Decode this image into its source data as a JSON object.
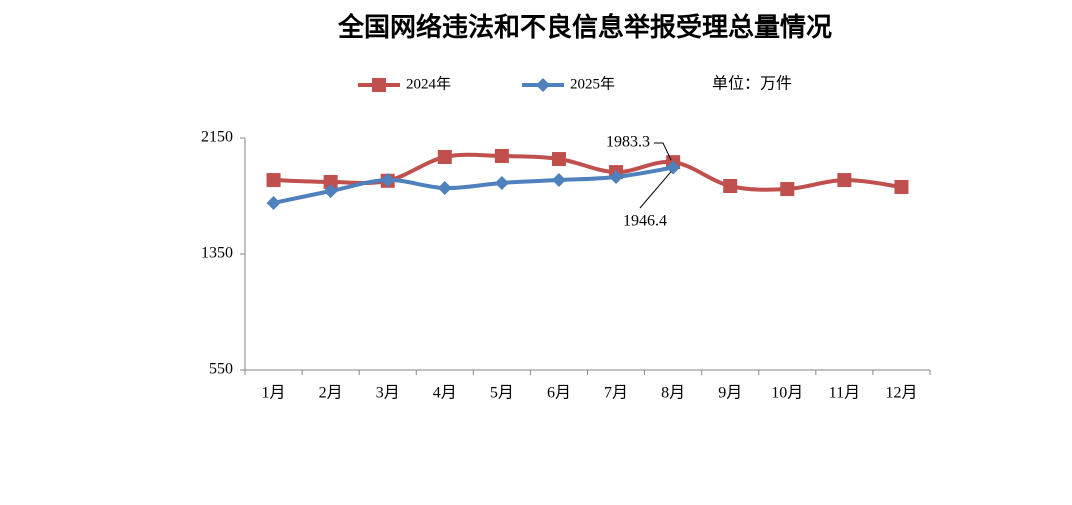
{
  "chart_data": {
    "type": "line",
    "title": "全国网络违法和不良信息举报受理总量情况",
    "unit": "单位：万件",
    "categories": [
      "1月",
      "2月",
      "3月",
      "4月",
      "5月",
      "6月",
      "7月",
      "8月",
      "9月",
      "10月",
      "11月",
      "12月"
    ],
    "series": [
      {
        "name": "2024年",
        "color": "#c0504d",
        "marker": "square",
        "values": [
          1860,
          1847,
          1855,
          2019,
          2026,
          2005,
          1915,
          1983.3,
          1819,
          1798,
          1860,
          1812
        ]
      },
      {
        "name": "2025年",
        "color": "#4f81bd",
        "marker": "diamond",
        "values": [
          1702,
          1784,
          1860,
          1805,
          1840,
          1860,
          1881,
          1946.4,
          null,
          null,
          null,
          null
        ]
      }
    ],
    "ylim": [
      550,
      2150
    ],
    "yticks": [
      550,
      1350,
      2150
    ],
    "grid": false,
    "legend": "top"
  }
}
